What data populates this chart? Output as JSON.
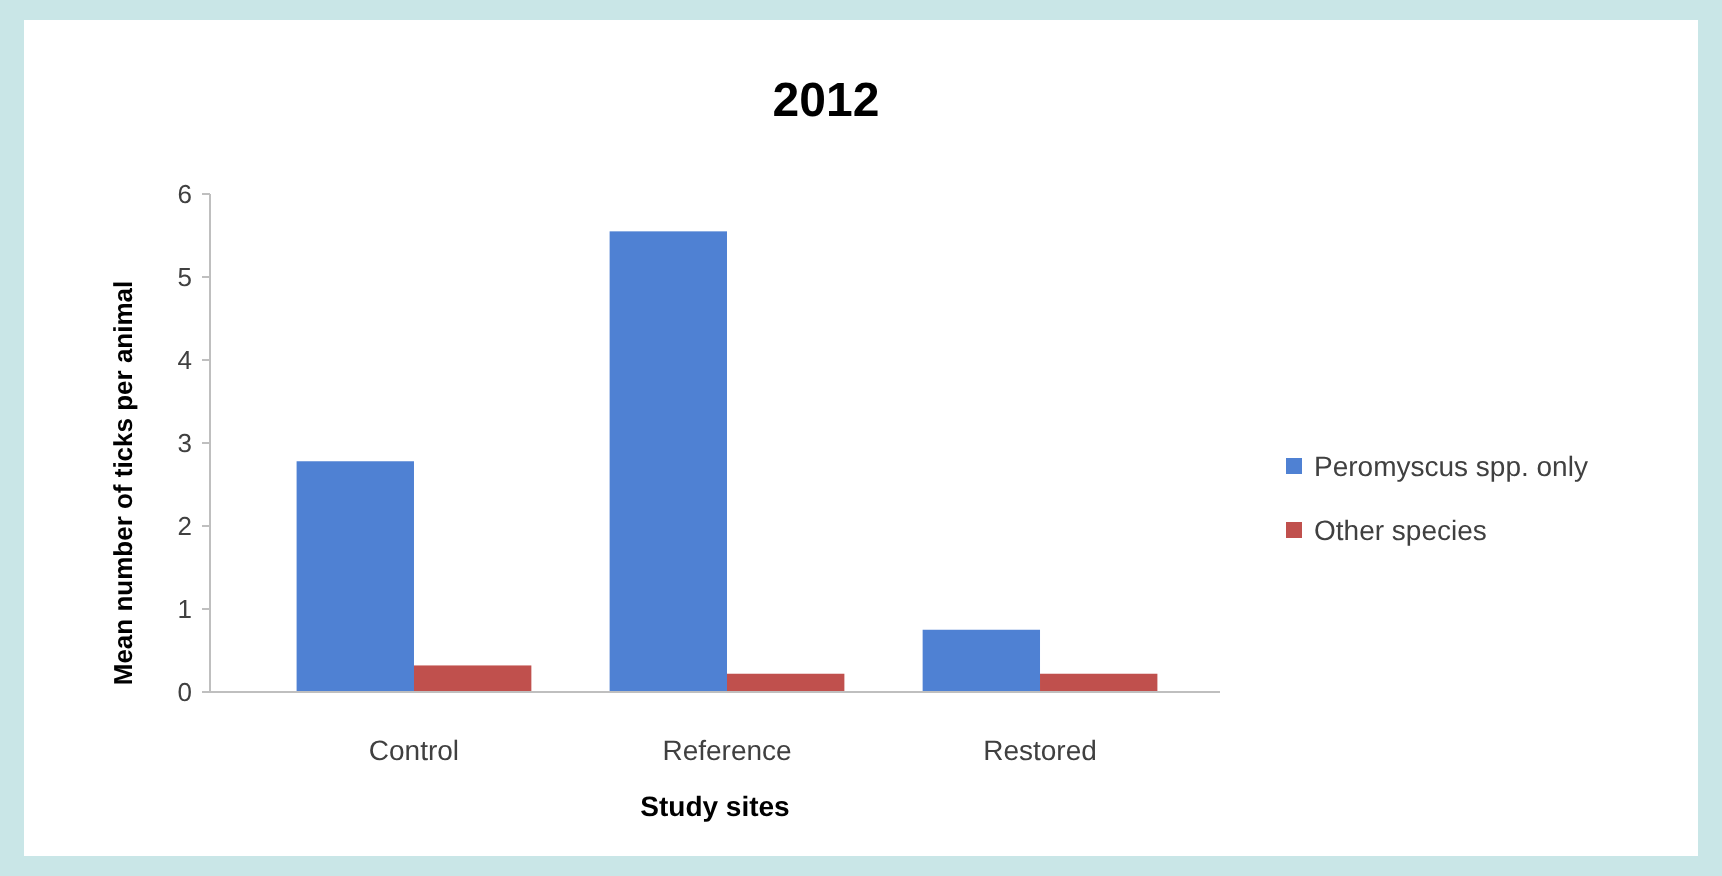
{
  "chart_data": {
    "type": "bar",
    "title": "2012",
    "xlabel": "Study sites",
    "ylabel": "Mean number of  ticks per  animal",
    "categories": [
      "Control",
      "Reference",
      "Restored"
    ],
    "series": [
      {
        "name": "Peromyscus spp. only",
        "color": "#4f81d3",
        "values": [
          2.78,
          5.55,
          0.75
        ]
      },
      {
        "name": "Other species",
        "color": "#c0504d",
        "values": [
          0.32,
          0.22,
          0.22
        ]
      }
    ],
    "ylim": [
      0,
      6
    ],
    "yticks": [
      0,
      1,
      2,
      3,
      4,
      5,
      6
    ],
    "grid": false,
    "legend": "right"
  }
}
